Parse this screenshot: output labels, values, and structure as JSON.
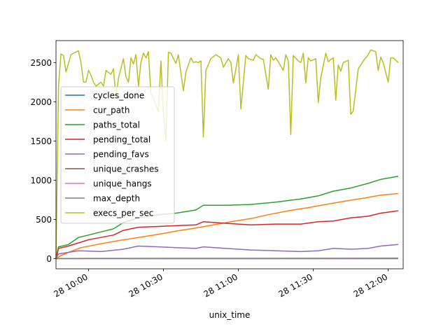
{
  "chart_data": {
    "type": "line",
    "xlabel": "unix_time",
    "ylabel": "",
    "x_unit": "datetime",
    "xlim": [
      "2024-01-28T09:47:00",
      "2024-01-28T12:06:00"
    ],
    "ylim": [
      -130,
      2780
    ],
    "xticks": [
      {
        "value": "2024-01-28T10:00:00",
        "label": "28 10:00"
      },
      {
        "value": "2024-01-28T10:30:00",
        "label": "28 10:30"
      },
      {
        "value": "2024-01-28T11:00:00",
        "label": "28 11:00"
      },
      {
        "value": "2024-01-28T11:30:00",
        "label": "28 11:30"
      },
      {
        "value": "2024-01-28T12:00:00",
        "label": "28 12:00"
      }
    ],
    "yticks": [
      0,
      500,
      1000,
      1500,
      2000,
      2500
    ],
    "grid": false,
    "legend_position": "center-left",
    "series": [
      {
        "name": "cycles_done",
        "color": "#1f77b4",
        "x": [
          "2024-01-28T09:47:00",
          "2024-01-28T12:04:00"
        ],
        "values": [
          0,
          0
        ]
      },
      {
        "name": "cur_path",
        "color": "#ff7f0e",
        "x": [
          "2024-01-28T09:47:00",
          "2024-01-28T09:49:00",
          "2024-01-28T09:52:00",
          "2024-01-28T09:57:00",
          "2024-01-28T10:05:00",
          "2024-01-28T10:12:00",
          "2024-01-28T10:20:00",
          "2024-01-28T10:28:00",
          "2024-01-28T10:35:00",
          "2024-01-28T10:43:00",
          "2024-01-28T10:50:00",
          "2024-01-28T10:57:00",
          "2024-01-28T11:05:00",
          "2024-01-28T11:12:00",
          "2024-01-28T11:20:00",
          "2024-01-28T11:28:00",
          "2024-01-28T11:35:00",
          "2024-01-28T11:42:00",
          "2024-01-28T11:50:00",
          "2024-01-28T11:57:00",
          "2024-01-28T12:04:00"
        ],
        "values": [
          0,
          40,
          80,
          140,
          190,
          230,
          270,
          310,
          350,
          390,
          430,
          470,
          510,
          560,
          610,
          650,
          690,
          730,
          770,
          810,
          830
        ]
      },
      {
        "name": "paths_total",
        "color": "#2ca02c",
        "x": [
          "2024-01-28T09:47:00",
          "2024-01-28T09:48:00",
          "2024-01-28T09:52:00",
          "2024-01-28T09:56:00",
          "2024-01-28T10:00:00",
          "2024-01-28T10:05:00",
          "2024-01-28T10:10:00",
          "2024-01-28T10:14:00",
          "2024-01-28T10:20:00",
          "2024-01-28T10:28:00",
          "2024-01-28T10:35:00",
          "2024-01-28T10:43:00",
          "2024-01-28T10:46:00",
          "2024-01-28T10:55:00",
          "2024-01-28T11:05:00",
          "2024-01-28T11:15:00",
          "2024-01-28T11:25:00",
          "2024-01-28T11:32:00",
          "2024-01-28T11:38:00",
          "2024-01-28T11:45:00",
          "2024-01-28T11:52:00",
          "2024-01-28T11:57:00",
          "2024-01-28T12:04:00"
        ],
        "values": [
          0,
          150,
          180,
          270,
          300,
          340,
          380,
          460,
          520,
          560,
          580,
          620,
          680,
          680,
          690,
          720,
          760,
          800,
          860,
          900,
          960,
          1010,
          1050
        ]
      },
      {
        "name": "pending_total",
        "color": "#d62728",
        "x": [
          "2024-01-28T09:47:00",
          "2024-01-28T09:48:00",
          "2024-01-28T09:52:00",
          "2024-01-28T09:56:00",
          "2024-01-28T10:00:00",
          "2024-01-28T10:05:00",
          "2024-01-28T10:10:00",
          "2024-01-28T10:14:00",
          "2024-01-28T10:20:00",
          "2024-01-28T10:28:00",
          "2024-01-28T10:35:00",
          "2024-01-28T10:43:00",
          "2024-01-28T10:46:00",
          "2024-01-28T10:55:00",
          "2024-01-28T11:05:00",
          "2024-01-28T11:15:00",
          "2024-01-28T11:25:00",
          "2024-01-28T11:32:00",
          "2024-01-28T11:38:00",
          "2024-01-28T11:45:00",
          "2024-01-28T11:52:00",
          "2024-01-28T11:57:00",
          "2024-01-28T12:04:00"
        ],
        "values": [
          0,
          130,
          160,
          200,
          240,
          270,
          300,
          360,
          400,
          410,
          420,
          430,
          470,
          450,
          430,
          440,
          440,
          470,
          480,
          520,
          540,
          580,
          610
        ]
      },
      {
        "name": "pending_favs",
        "color": "#9467bd",
        "x": [
          "2024-01-28T09:47:00",
          "2024-01-28T09:48:00",
          "2024-01-28T09:52:00",
          "2024-01-28T09:56:00",
          "2024-01-28T10:05:00",
          "2024-01-28T10:14:00",
          "2024-01-28T10:20:00",
          "2024-01-28T10:28:00",
          "2024-01-28T10:35:00",
          "2024-01-28T10:43:00",
          "2024-01-28T10:46:00",
          "2024-01-28T10:55:00",
          "2024-01-28T11:05:00",
          "2024-01-28T11:15:00",
          "2024-01-28T11:25:00",
          "2024-01-28T11:32:00",
          "2024-01-28T11:38:00",
          "2024-01-28T11:45:00",
          "2024-01-28T11:52:00",
          "2024-01-28T11:57:00",
          "2024-01-28T12:04:00"
        ],
        "values": [
          0,
          60,
          80,
          100,
          90,
          120,
          160,
          150,
          140,
          130,
          150,
          130,
          110,
          100,
          90,
          100,
          130,
          120,
          130,
          160,
          180
        ]
      },
      {
        "name": "unique_crashes",
        "color": "#8c564b",
        "x": [
          "2024-01-28T09:47:00",
          "2024-01-28T12:04:00"
        ],
        "values": [
          0,
          0
        ]
      },
      {
        "name": "unique_hangs",
        "color": "#e377c2",
        "x": [
          "2024-01-28T09:47:00",
          "2024-01-28T12:04:00"
        ],
        "values": [
          0,
          0
        ]
      },
      {
        "name": "max_depth",
        "color": "#7f7f7f",
        "x": [
          "2024-01-28T09:47:00",
          "2024-01-28T10:00:00",
          "2024-01-28T11:00:00",
          "2024-01-28T12:04:00"
        ],
        "values": [
          0,
          3,
          4,
          6
        ]
      },
      {
        "name": "execs_per_sec",
        "color": "#bcbd22",
        "x": [
          "2024-01-28T09:47:00",
          "2024-01-28T09:48:00",
          "2024-01-28T09:49:00",
          "2024-01-28T09:50:00",
          "2024-01-28T09:51:00",
          "2024-01-28T09:53:00",
          "2024-01-28T09:54:00",
          "2024-01-28T09:56:00",
          "2024-01-28T09:57:00",
          "2024-01-28T09:58:00",
          "2024-01-28T09:59:00",
          "2024-01-28T10:00:00",
          "2024-01-28T10:01:00",
          "2024-01-28T10:02:00",
          "2024-01-28T10:03:00",
          "2024-01-28T10:05:00",
          "2024-01-28T10:06:00",
          "2024-01-28T10:07:00",
          "2024-01-28T10:09:00",
          "2024-01-28T10:10:00",
          "2024-01-28T10:11:00",
          "2024-01-28T10:12:00",
          "2024-01-28T10:14:00",
          "2024-01-28T10:15:00",
          "2024-01-28T10:16:00",
          "2024-01-28T10:17:00",
          "2024-01-28T10:18:00",
          "2024-01-28T10:19:00",
          "2024-01-28T10:20:00",
          "2024-01-28T10:21:00",
          "2024-01-28T10:22:00",
          "2024-01-28T10:23:00",
          "2024-01-28T10:24:00",
          "2024-01-28T10:25:00",
          "2024-01-28T10:26:00",
          "2024-01-28T10:28:00",
          "2024-01-28T10:29:00",
          "2024-01-28T10:30:00",
          "2024-01-28T10:31:00",
          "2024-01-28T10:32:00",
          "2024-01-28T10:33:00",
          "2024-01-28T10:35:00",
          "2024-01-28T10:36:00",
          "2024-01-28T10:38:00",
          "2024-01-28T10:39:00",
          "2024-01-28T10:41:00",
          "2024-01-28T10:42:00",
          "2024-01-28T10:43:00",
          "2024-01-28T10:44:00",
          "2024-01-28T10:45:00",
          "2024-01-28T10:46:00",
          "2024-01-28T10:47:00",
          "2024-01-28T10:49:00",
          "2024-01-28T10:51:00",
          "2024-01-28T10:53:00",
          "2024-01-28T10:54:00",
          "2024-01-28T10:56:00",
          "2024-01-28T10:57:00",
          "2024-01-28T10:58:00",
          "2024-01-28T11:00:00",
          "2024-01-28T11:01:00",
          "2024-01-28T11:03:00",
          "2024-01-28T11:04:00",
          "2024-01-28T11:06:00",
          "2024-01-28T11:07:00",
          "2024-01-28T11:09:00",
          "2024-01-28T11:10:00",
          "2024-01-28T11:12:00",
          "2024-01-28T11:13:00",
          "2024-01-28T11:14:00",
          "2024-01-28T11:15:00",
          "2024-01-28T11:16:00",
          "2024-01-28T11:18:00",
          "2024-01-28T11:19:00",
          "2024-01-28T11:20:00",
          "2024-01-28T11:21:00",
          "2024-01-28T11:22:00",
          "2024-01-28T11:24:00",
          "2024-01-28T11:25:00",
          "2024-01-28T11:26:00",
          "2024-01-28T11:27:00",
          "2024-01-28T11:28:00",
          "2024-01-28T11:29:00",
          "2024-01-28T11:31:00",
          "2024-01-28T11:32:00",
          "2024-01-28T11:33:00",
          "2024-01-28T11:35:00",
          "2024-01-28T11:36:00",
          "2024-01-28T11:37:00",
          "2024-01-28T11:38:00",
          "2024-01-28T11:39:00",
          "2024-01-28T11:40:00",
          "2024-01-28T11:41:00",
          "2024-01-28T11:42:00",
          "2024-01-28T11:44:00",
          "2024-01-28T11:45:00",
          "2024-01-28T11:46:00",
          "2024-01-28T11:48:00",
          "2024-01-28T11:50:00",
          "2024-01-28T11:51:00",
          "2024-01-28T11:52:00",
          "2024-01-28T11:53:00",
          "2024-01-28T11:55:00",
          "2024-01-28T11:56:00",
          "2024-01-28T11:57:00",
          "2024-01-28T11:58:00",
          "2024-01-28T12:00:00",
          "2024-01-28T12:01:00",
          "2024-01-28T12:02:00",
          "2024-01-28T12:04:00"
        ],
        "values": [
          0,
          2200,
          2610,
          2590,
          2380,
          2600,
          2620,
          2650,
          2500,
          2250,
          2250,
          2400,
          2340,
          2250,
          2200,
          2250,
          2200,
          2400,
          2350,
          2420,
          2050,
          2300,
          2550,
          2320,
          2250,
          2560,
          2480,
          2600,
          2200,
          2500,
          2620,
          2560,
          2640,
          2100,
          2050,
          1870,
          2520,
          1850,
          1500,
          2630,
          2620,
          2490,
          2600,
          2140,
          2380,
          2560,
          2500,
          2510,
          2500,
          2520,
          1550,
          2400,
          2550,
          2600,
          2560,
          2440,
          2550,
          2500,
          2240,
          2600,
          1910,
          2590,
          2550,
          2530,
          2600,
          2550,
          2540,
          2160,
          2600,
          2530,
          2560,
          2510,
          2400,
          2600,
          2520,
          1580,
          2590,
          2520,
          2500,
          2620,
          2240,
          2560,
          2520,
          2550,
          1990,
          2300,
          2620,
          2510,
          2540,
          2560,
          2020,
          2470,
          2390,
          2500,
          2530,
          1840,
          1880,
          2420,
          2520,
          2560,
          2600,
          2660,
          2640,
          2400,
          2570,
          2500,
          2250,
          2560,
          2560,
          2500
        ]
      }
    ]
  }
}
